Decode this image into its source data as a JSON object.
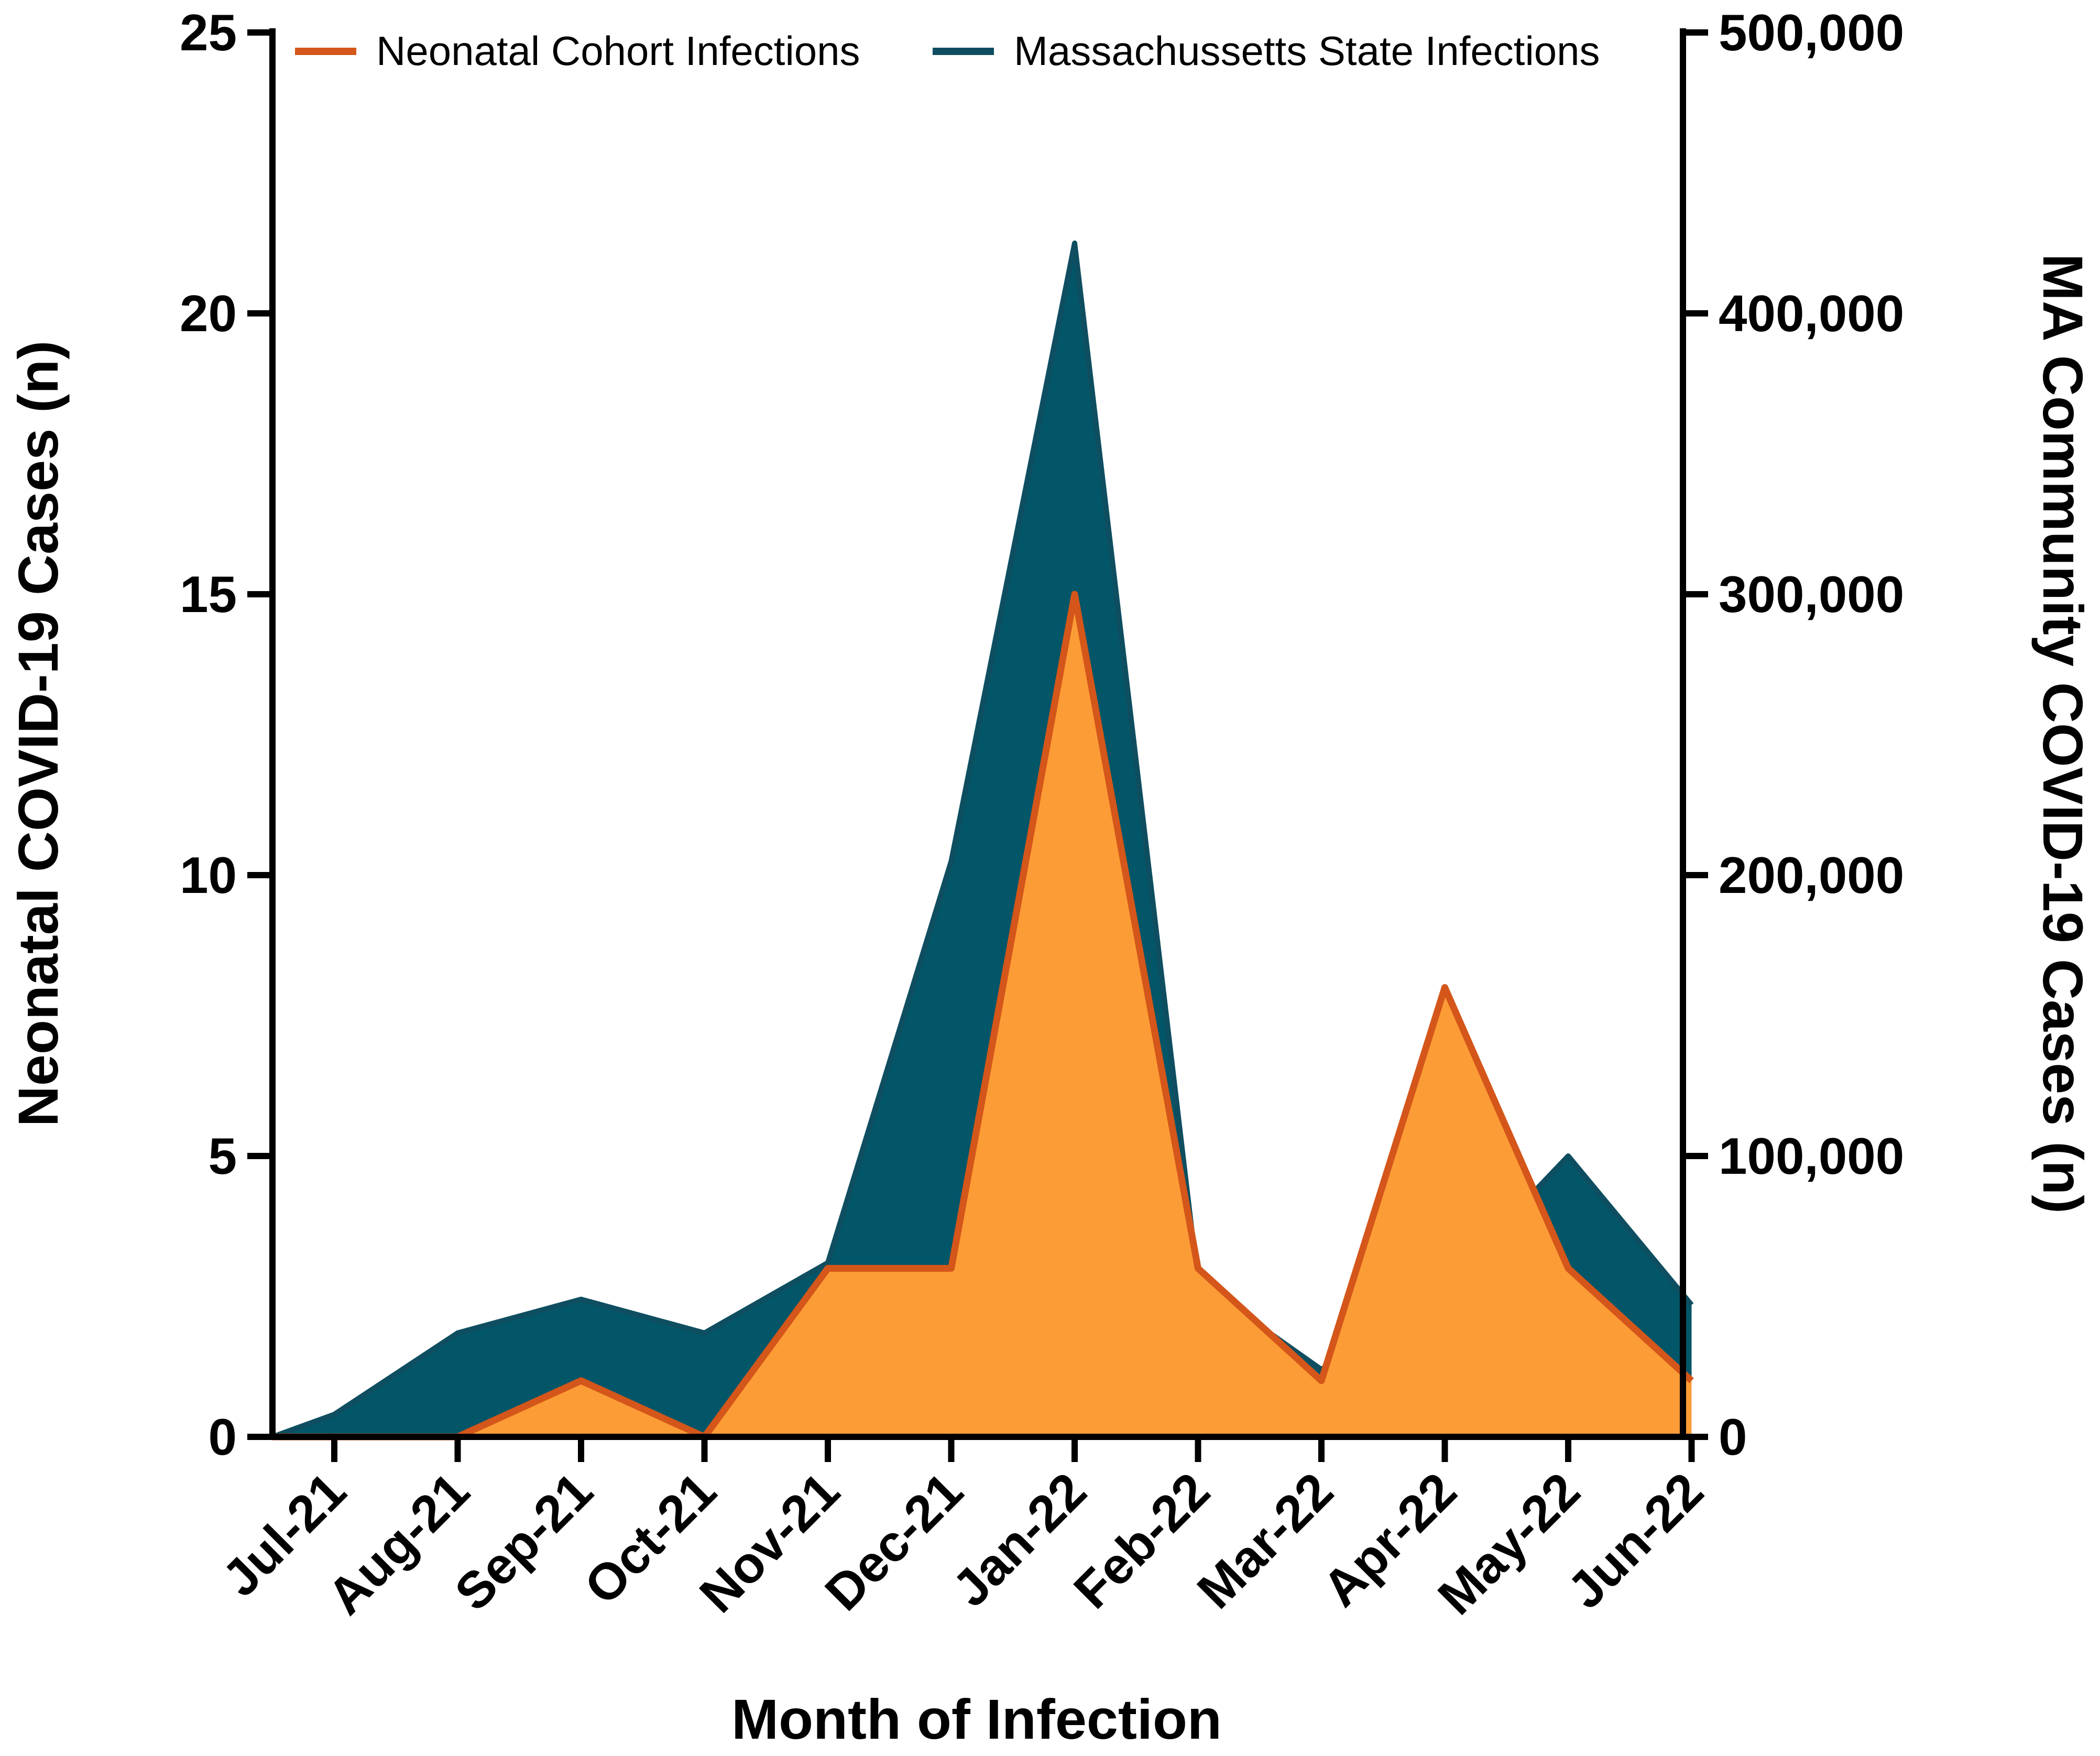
{
  "colors": {
    "neonatal_line": "#D4561A",
    "neonatal_fill": "#FC9C36",
    "state_line": "#0E4E60",
    "state_fill": "#035568",
    "axis": "#000000"
  },
  "chart_data": {
    "type": "area",
    "title": "",
    "xlabel": "Month of Infection",
    "ylabel_left": "Neonatal COVID-19 Cases (n)",
    "ylabel_right": "MA Community COVID-19 Cases (n)",
    "categories": [
      "Jul-21",
      "Aug-21",
      "Sep-21",
      "Oct-21",
      "Nov-21",
      "Dec-21",
      "Jan-22",
      "Feb-22",
      "Mar-22",
      "Apr-22",
      "May-22",
      "Jun-22"
    ],
    "left_axis": {
      "range": [
        0,
        25
      ],
      "ticks": [
        0,
        5,
        10,
        15,
        20,
        25
      ],
      "tick_labels": [
        "0",
        "5",
        "10",
        "15",
        "20",
        "25"
      ]
    },
    "right_axis": {
      "range": [
        0,
        500000
      ],
      "ticks": [
        0,
        100000,
        200000,
        300000,
        400000,
        500000
      ],
      "tick_labels": [
        "0",
        "100,000",
        "200,000",
        "300,000",
        "400,000",
        "500,000"
      ]
    },
    "legend_position": "top",
    "series": [
      {
        "name": "Neonatal Cohort Infections",
        "axis": "left",
        "values": [
          0,
          0,
          1,
          0,
          3,
          3,
          15,
          3,
          1,
          8,
          3,
          1
        ]
      },
      {
        "name": "Massachussetts State Infections",
        "axis": "right",
        "values": [
          8000,
          37000,
          49000,
          37000,
          62000,
          205000,
          425000,
          55000,
          24000,
          54000,
          100000,
          47000
        ]
      }
    ]
  }
}
